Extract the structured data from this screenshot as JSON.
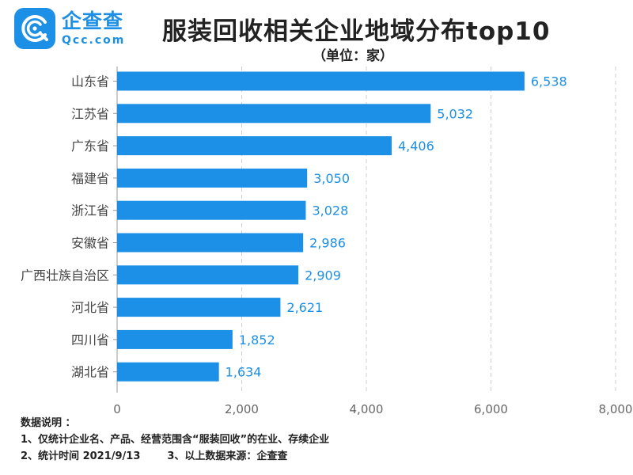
{
  "brand": {
    "name": "企查查",
    "domain": "Qcc.com",
    "color": "#1c8fe6"
  },
  "header": {
    "title": "服装回收相关企业地域分布top10",
    "unit": "（单位：家）"
  },
  "chart_data": {
    "type": "bar",
    "orientation": "horizontal",
    "categories": [
      "山东省",
      "江苏省",
      "广东省",
      "福建省",
      "浙江省",
      "安徽省",
      "广西壮族自治区",
      "河北省",
      "四川省",
      "湖北省"
    ],
    "values": [
      6538,
      5032,
      4406,
      3050,
      3028,
      2986,
      2909,
      2621,
      1852,
      1634
    ],
    "value_labels": [
      "6,538",
      "5,032",
      "4,406",
      "3,050",
      "3,028",
      "2,986",
      "2,909",
      "2,621",
      "1,852",
      "1,634"
    ],
    "xlim": [
      0,
      8000
    ],
    "xticks": [
      0,
      2000,
      4000,
      6000,
      8000
    ],
    "xtick_labels": [
      "0",
      "2,000",
      "4,000",
      "6,000",
      "8,000"
    ],
    "grid": "vertical dashed",
    "bar_color": "#1c8fe6",
    "label_color": "#1c8fe6"
  },
  "notes": {
    "heading": "数据说明 ：",
    "line1": "1、仅统计企业名、产品、经营范围含“服装回收”的在业、存续企业",
    "line2a": "2、统计时间 2021/9/13",
    "line2b": "3、以上数据来源：企查查"
  }
}
